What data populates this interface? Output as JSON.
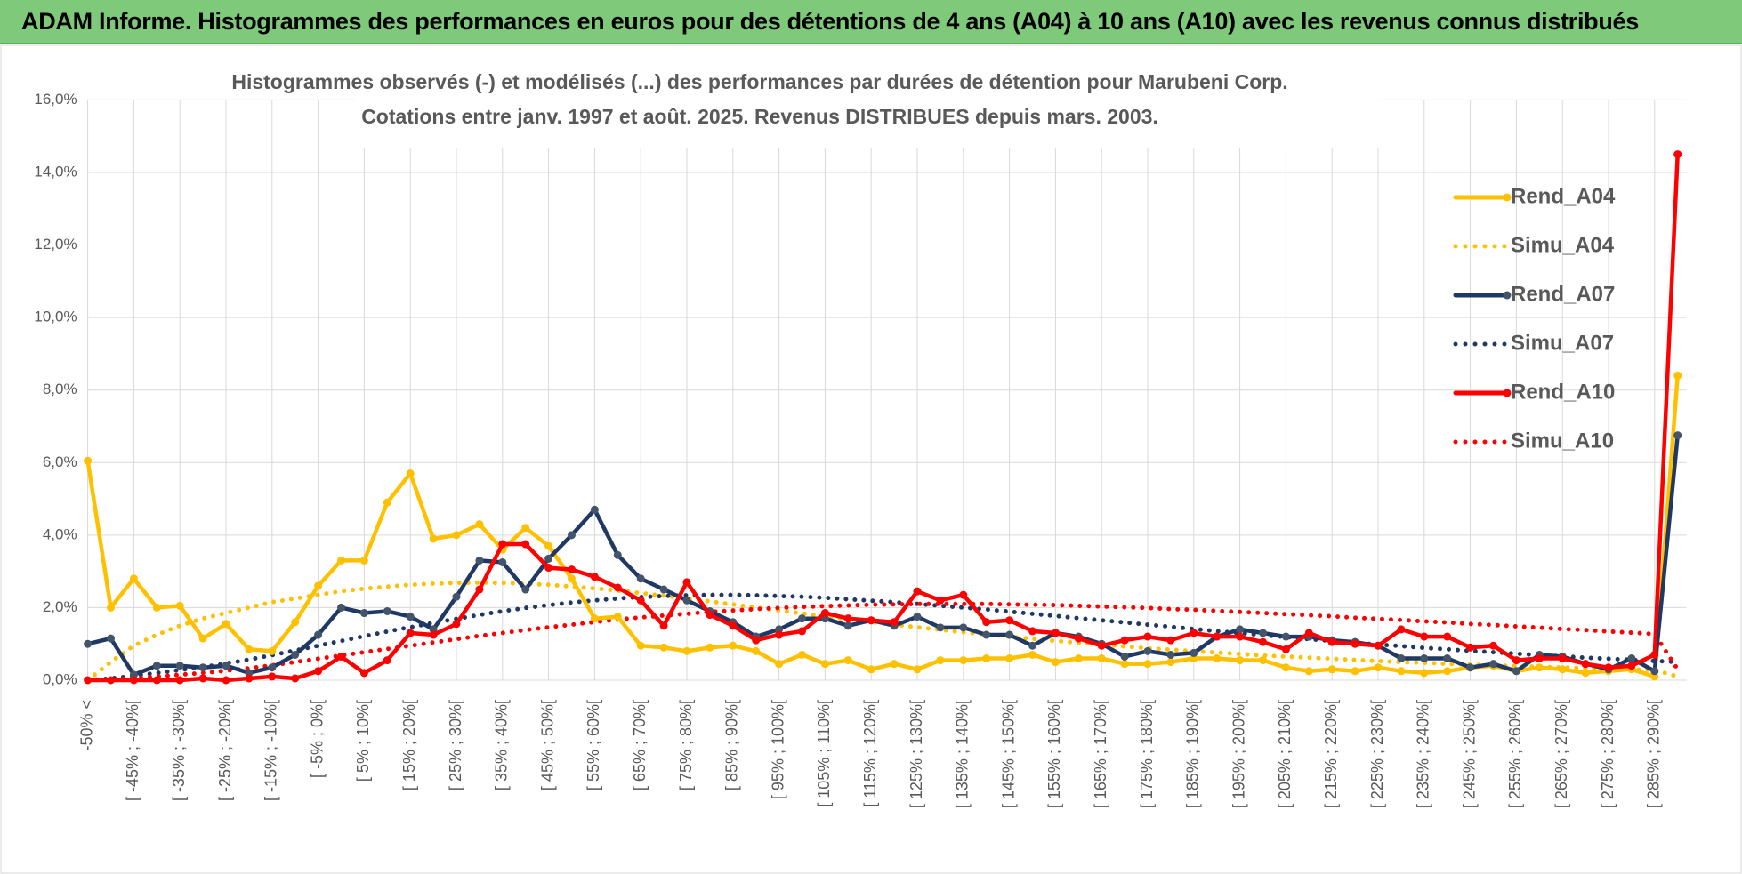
{
  "header": {
    "title": "ADAM Informe. Histogrammes des performances en euros pour des détentions de 4 ans (A04) à 10 ans (A10) avec les revenus connus distribués"
  },
  "chart_data": {
    "type": "line",
    "title": "Histogrammes observés (-) et modélisés (...) des performances par durées de détention pour Marubeni Corp.",
    "subtitle": "Cotations entre janv. 1997 et août. 2025. Revenus DISTRIBUES depuis mars. 2003.",
    "categories": [
      "-50% <",
      null,
      "[ -45% ; -40%[",
      null,
      "[ -35% ; -30%[",
      null,
      "[ -25% ; -20%[",
      null,
      "[ -15% ; -10%[",
      null,
      "[ -5% ; 0%[",
      null,
      "[ 5% ; 10%[",
      null,
      "[ 15% ; 20%[",
      null,
      "[ 25% ; 30%[",
      null,
      "[ 35% ; 40%[",
      null,
      "[ 45% ; 50%[",
      null,
      "[ 55% ; 60%[",
      null,
      "[ 65% ; 70%[",
      null,
      "[ 75% ; 80%[",
      null,
      "[ 85% ; 90%[",
      null,
      "[ 95% ; 100%[",
      null,
      "[ 105% ; 110%[",
      null,
      "[ 115% ; 120%[",
      null,
      "[ 125% ; 130%[",
      null,
      "[ 135% ; 140%[",
      null,
      "[ 145% ; 150%[",
      null,
      "[ 155% ; 160%[",
      null,
      "[ 165% ; 170%[",
      null,
      "[ 175% ; 180%[",
      null,
      "[ 185% ; 190%[",
      null,
      "[ 195% ; 200%[",
      null,
      "[ 205% ; 210%[",
      null,
      "[ 215% ; 220%[",
      null,
      "[ 225% ; 230%[",
      null,
      "[ 235% ; 240%[",
      null,
      "[ 245% ; 250%[",
      null,
      "[ 255% ; 260%[",
      null,
      "[ 265% ; 270%[",
      null,
      "[ 275% ; 280%[",
      null,
      "[ 285% ; 290%[",
      null
    ],
    "series": [
      {
        "name": "Rend_A04",
        "color": "#FFC000",
        "style": "solid",
        "markers": true,
        "values": [
          6.05,
          2.0,
          2.8,
          2.0,
          2.05,
          1.15,
          1.55,
          0.85,
          0.8,
          1.6,
          2.6,
          3.3,
          3.3,
          4.9,
          5.7,
          3.9,
          4.0,
          4.3,
          3.6,
          4.2,
          3.7,
          2.8,
          1.7,
          1.75,
          0.95,
          0.9,
          0.8,
          0.9,
          0.95,
          0.8,
          0.45,
          0.7,
          0.45,
          0.55,
          0.3,
          0.45,
          0.3,
          0.55,
          0.55,
          0.6,
          0.6,
          0.7,
          0.5,
          0.6,
          0.6,
          0.45,
          0.45,
          0.5,
          0.6,
          0.6,
          0.55,
          0.55,
          0.35,
          0.25,
          0.3,
          0.25,
          0.35,
          0.25,
          0.2,
          0.25,
          0.35,
          0.4,
          0.25,
          0.35,
          0.3,
          0.2,
          0.25,
          0.3,
          0.1,
          8.4
        ]
      },
      {
        "name": "Simu_A04",
        "color": "#FFC000",
        "style": "dotted",
        "markers": false,
        "values": [
          0,
          0.5,
          0.95,
          1.25,
          1.5,
          1.7,
          1.85,
          2.0,
          2.15,
          2.25,
          2.35,
          2.45,
          2.52,
          2.58,
          2.63,
          2.66,
          2.68,
          2.69,
          2.68,
          2.66,
          2.63,
          2.58,
          2.53,
          2.47,
          2.4,
          2.33,
          2.25,
          2.17,
          2.09,
          2.0,
          1.92,
          1.84,
          1.76,
          1.68,
          1.6,
          1.53,
          1.46,
          1.39,
          1.32,
          1.26,
          1.2,
          1.14,
          1.08,
          1.03,
          0.98,
          0.93,
          0.88,
          0.84,
          0.8,
          0.76,
          0.72,
          0.68,
          0.65,
          0.62,
          0.59,
          0.56,
          0.53,
          0.5,
          0.48,
          0.45,
          0.43,
          0.41,
          0.39,
          0.37,
          0.35,
          0.33,
          0.31,
          0.3,
          0.28,
          0.1
        ]
      },
      {
        "name": "Rend_A07",
        "color": "#1F3864",
        "style": "solid",
        "markers": true,
        "values": [
          1.0,
          1.15,
          0.15,
          0.4,
          0.4,
          0.35,
          0.4,
          0.2,
          0.35,
          0.7,
          1.25,
          2.0,
          1.85,
          1.9,
          1.75,
          1.4,
          2.3,
          3.3,
          3.25,
          2.5,
          3.35,
          4.0,
          4.7,
          3.45,
          2.8,
          2.5,
          2.2,
          1.9,
          1.6,
          1.2,
          1.4,
          1.7,
          1.7,
          1.5,
          1.65,
          1.5,
          1.75,
          1.45,
          1.45,
          1.25,
          1.25,
          0.95,
          1.3,
          1.2,
          1.0,
          0.65,
          0.8,
          0.7,
          0.75,
          1.2,
          1.4,
          1.3,
          1.2,
          1.2,
          1.1,
          1.05,
          0.95,
          0.6,
          0.6,
          0.6,
          0.35,
          0.45,
          0.25,
          0.7,
          0.65,
          0.45,
          0.3,
          0.6,
          0.25,
          6.75
        ]
      },
      {
        "name": "Simu_A07",
        "color": "#1F3864",
        "style": "dotted",
        "markers": false,
        "values": [
          0,
          0.05,
          0.12,
          0.2,
          0.28,
          0.36,
          0.46,
          0.57,
          0.69,
          0.82,
          0.95,
          1.08,
          1.21,
          1.34,
          1.46,
          1.58,
          1.69,
          1.8,
          1.9,
          1.99,
          2.07,
          2.14,
          2.2,
          2.25,
          2.29,
          2.32,
          2.34,
          2.35,
          2.35,
          2.34,
          2.32,
          2.3,
          2.27,
          2.23,
          2.19,
          2.15,
          2.1,
          2.05,
          2.0,
          1.95,
          1.89,
          1.83,
          1.77,
          1.71,
          1.65,
          1.59,
          1.53,
          1.47,
          1.41,
          1.35,
          1.3,
          1.24,
          1.19,
          1.13,
          1.08,
          1.03,
          0.98,
          0.94,
          0.89,
          0.85,
          0.81,
          0.77,
          0.73,
          0.69,
          0.66,
          0.62,
          0.59,
          0.56,
          0.53,
          0.5
        ]
      },
      {
        "name": "Rend_A10",
        "color": "#FF0000",
        "style": "solid",
        "markers": true,
        "values": [
          0,
          0,
          0,
          0,
          0,
          0.05,
          0,
          0.05,
          0.1,
          0.05,
          0.25,
          0.65,
          0.2,
          0.55,
          1.3,
          1.25,
          1.55,
          2.5,
          3.75,
          3.75,
          3.1,
          3.05,
          2.85,
          2.55,
          2.2,
          1.5,
          2.7,
          1.8,
          1.5,
          1.1,
          1.25,
          1.35,
          1.85,
          1.7,
          1.65,
          1.6,
          2.45,
          2.2,
          2.35,
          1.6,
          1.65,
          1.35,
          1.3,
          1.15,
          0.95,
          1.1,
          1.2,
          1.1,
          1.3,
          1.2,
          1.2,
          1.05,
          0.85,
          1.3,
          1.05,
          1.0,
          0.95,
          1.4,
          1.2,
          1.2,
          0.9,
          0.95,
          0.55,
          0.6,
          0.6,
          0.45,
          0.35,
          0.4,
          0.7,
          14.5
        ]
      },
      {
        "name": "Simu_A10",
        "color": "#FF0000",
        "style": "dotted",
        "markers": false,
        "values": [
          0,
          0.02,
          0.05,
          0.1,
          0.15,
          0.2,
          0.26,
          0.33,
          0.41,
          0.5,
          0.59,
          0.68,
          0.77,
          0.86,
          0.95,
          1.04,
          1.13,
          1.22,
          1.3,
          1.38,
          1.46,
          1.53,
          1.6,
          1.67,
          1.73,
          1.78,
          1.83,
          1.88,
          1.92,
          1.96,
          1.99,
          2.02,
          2.04,
          2.06,
          2.08,
          2.09,
          2.1,
          2.1,
          2.1,
          2.1,
          2.09,
          2.08,
          2.07,
          2.05,
          2.03,
          2.01,
          1.99,
          1.96,
          1.94,
          1.91,
          1.88,
          1.85,
          1.82,
          1.79,
          1.76,
          1.72,
          1.69,
          1.66,
          1.62,
          1.59,
          1.55,
          1.52,
          1.48,
          1.45,
          1.41,
          1.38,
          1.34,
          1.31,
          1.27,
          0.3
        ]
      }
    ],
    "ylim": [
      0,
      16
    ],
    "yticks": [
      {
        "value": 0,
        "label": "0,0%"
      },
      {
        "value": 2,
        "label": "2,0%"
      },
      {
        "value": 4,
        "label": "4,0%"
      },
      {
        "value": 6,
        "label": "6,0%"
      },
      {
        "value": 8,
        "label": "8,0%"
      },
      {
        "value": 10,
        "label": "10,0%"
      },
      {
        "value": 12,
        "label": "12,0%"
      },
      {
        "value": 14,
        "label": "14,0%"
      },
      {
        "value": 16,
        "label": "16,0%"
      }
    ],
    "grid": true,
    "legend": "right"
  }
}
